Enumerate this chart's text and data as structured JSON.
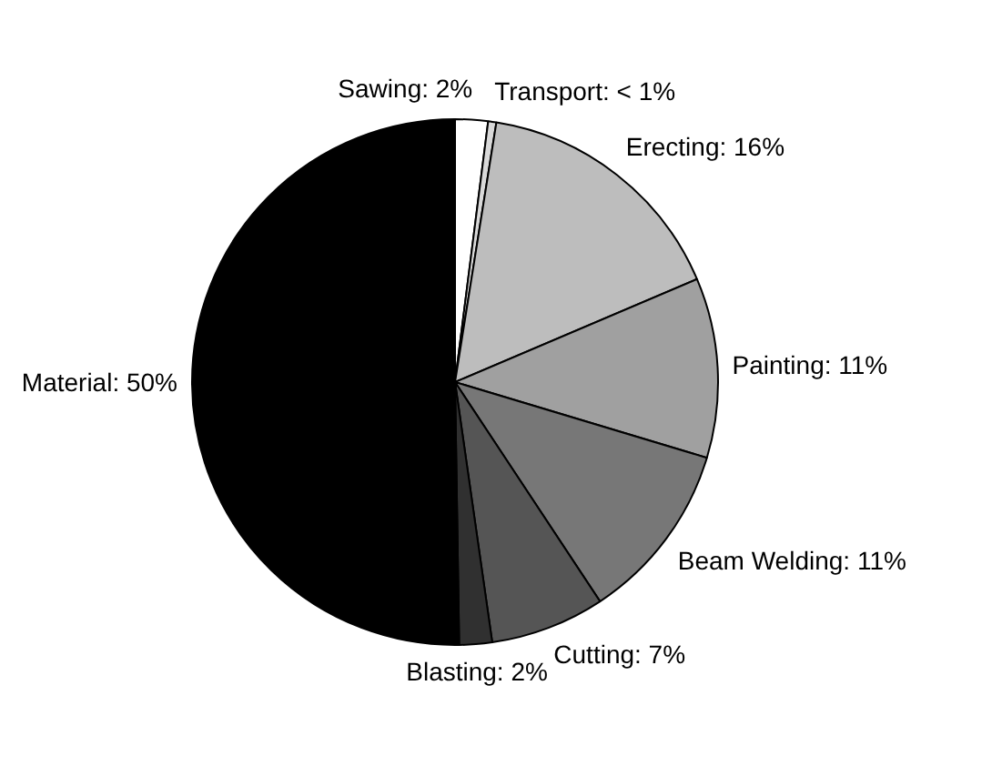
{
  "chart_data": {
    "type": "pie",
    "categories": [
      "Sawing",
      "Transport",
      "Erecting",
      "Painting",
      "Beam Welding",
      "Cutting",
      "Blasting",
      "Material"
    ],
    "values": [
      2,
      0.5,
      16,
      11,
      11,
      7,
      2,
      50
    ],
    "value_labels": [
      "2%",
      "< 1%",
      "16%",
      "11%",
      "11%",
      "7%",
      "2%",
      "50%"
    ],
    "colors": [
      "#ffffff",
      "#d9d9d9",
      "#bdbdbd",
      "#a0a0a0",
      "#777777",
      "#555555",
      "#303030",
      "#000000"
    ]
  }
}
